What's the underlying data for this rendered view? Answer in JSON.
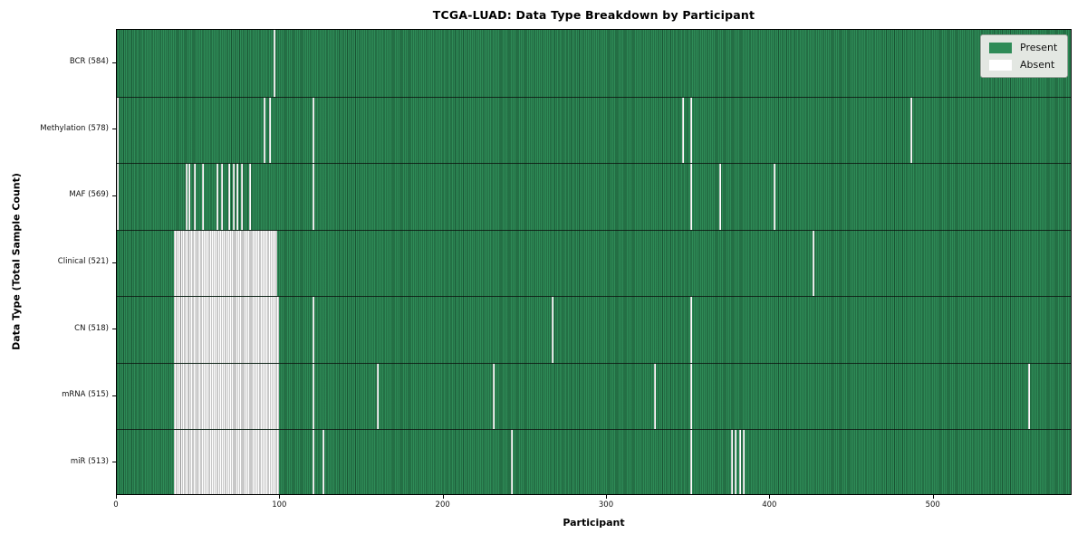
{
  "title": "TCGA-LUAD: Data Type Breakdown by Participant",
  "colors": {
    "present": "#2e8b57",
    "present_edge": "#0a2616",
    "absent": "#ffffff",
    "absent_edge": "#7d7d7d",
    "legend_bg": "#e3e7e2"
  },
  "legend": {
    "items": [
      {
        "label": "Present",
        "color": "#2e8b57"
      },
      {
        "label": "Absent",
        "color": "#ffffff"
      }
    ]
  },
  "chart_data": {
    "type": "heatmap",
    "title": "TCGA-LUAD: Data Type Breakdown by Participant",
    "xlabel": "Participant",
    "ylabel": "Data Type (Total Sample Count)",
    "x_ticks": [
      0,
      100,
      200,
      300,
      400,
      500
    ],
    "x_range": [
      0,
      585
    ],
    "n_participants": 585,
    "grid": false,
    "legend_position": "upper right",
    "legend_entries": [
      "Present",
      "Absent"
    ],
    "rows": [
      {
        "name": "BCR",
        "label": "BCR (584)",
        "present_count": 584,
        "absent_ranges": [
          [
            96,
            96
          ]
        ]
      },
      {
        "name": "Methylation",
        "label": "Methylation (578)",
        "present_count": 578,
        "absent_ranges": [
          [
            0,
            0
          ],
          [
            90,
            90
          ],
          [
            93,
            93
          ],
          [
            120,
            120
          ],
          [
            346,
            346
          ],
          [
            351,
            351
          ],
          [
            486,
            486
          ]
        ]
      },
      {
        "name": "MAF",
        "label": "MAF (569)",
        "present_count": 569,
        "absent_ranges": [
          [
            0,
            0
          ],
          [
            42,
            42
          ],
          [
            44,
            44
          ],
          [
            47,
            47
          ],
          [
            52,
            52
          ],
          [
            61,
            61
          ],
          [
            64,
            64
          ],
          [
            68,
            68
          ],
          [
            71,
            71
          ],
          [
            73,
            73
          ],
          [
            76,
            76
          ],
          [
            81,
            81
          ],
          [
            120,
            120
          ],
          [
            351,
            351
          ],
          [
            369,
            369
          ],
          [
            402,
            402
          ]
        ]
      },
      {
        "name": "Clinical",
        "label": "Clinical (521)",
        "present_count": 521,
        "absent_ranges": [
          [
            35,
            97
          ],
          [
            426,
            426
          ]
        ]
      },
      {
        "name": "CN",
        "label": "CN (518)",
        "present_count": 518,
        "absent_ranges": [
          [
            35,
            98
          ],
          [
            120,
            120
          ],
          [
            266,
            266
          ],
          [
            351,
            351
          ]
        ]
      },
      {
        "name": "mRNA",
        "label": "mRNA (515)",
        "present_count": 515,
        "absent_ranges": [
          [
            35,
            98
          ],
          [
            120,
            120
          ],
          [
            159,
            159
          ],
          [
            230,
            230
          ],
          [
            329,
            329
          ],
          [
            351,
            351
          ],
          [
            558,
            558
          ]
        ]
      },
      {
        "name": "miR",
        "label": "miR (513)",
        "present_count": 513,
        "absent_ranges": [
          [
            35,
            98
          ],
          [
            120,
            120
          ],
          [
            126,
            126
          ],
          [
            241,
            241
          ],
          [
            351,
            351
          ],
          [
            376,
            376
          ],
          [
            378,
            378
          ],
          [
            381,
            381
          ],
          [
            383,
            383
          ]
        ]
      }
    ]
  }
}
